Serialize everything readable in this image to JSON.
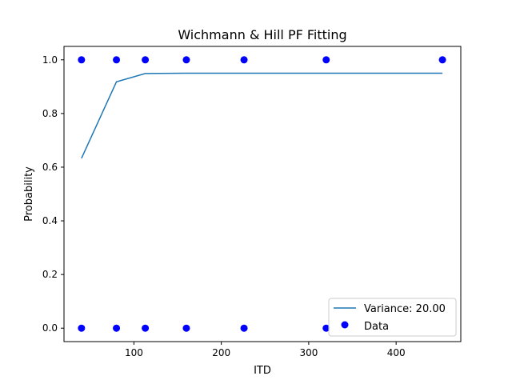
{
  "chart_data": {
    "type": "line",
    "title": "Wichmann & Hill PF Fitting",
    "xlabel": "ITD",
    "ylabel": "Probability",
    "xlim": [
      20,
      474
    ],
    "ylim": [
      -0.05,
      1.05
    ],
    "x_ticks": [
      100,
      200,
      300,
      400
    ],
    "y_ticks": [
      0.0,
      0.2,
      0.4,
      0.6,
      0.8,
      1.0
    ],
    "x_tick_labels": [
      "100",
      "200",
      "300",
      "400"
    ],
    "y_tick_labels": [
      "0.0",
      "0.2",
      "0.4",
      "0.6",
      "0.8",
      "1.0"
    ],
    "grid": false,
    "legend_position": "lower-right",
    "series": [
      {
        "name": "Variance: 20.00",
        "type": "line",
        "color": "#1f77b4",
        "x": [
          40,
          80,
          113,
          160,
          226,
          320,
          453
        ],
        "y": [
          0.633,
          0.918,
          0.949,
          0.95,
          0.95,
          0.95,
          0.95
        ]
      },
      {
        "name": "Data",
        "type": "scatter",
        "color": "#0000ff",
        "x": [
          40,
          80,
          113,
          160,
          226,
          320,
          453,
          40,
          80,
          113,
          160,
          226,
          320
        ],
        "y": [
          1,
          1,
          1,
          1,
          1,
          1,
          1,
          0,
          0,
          0,
          0,
          0,
          0
        ]
      }
    ]
  }
}
